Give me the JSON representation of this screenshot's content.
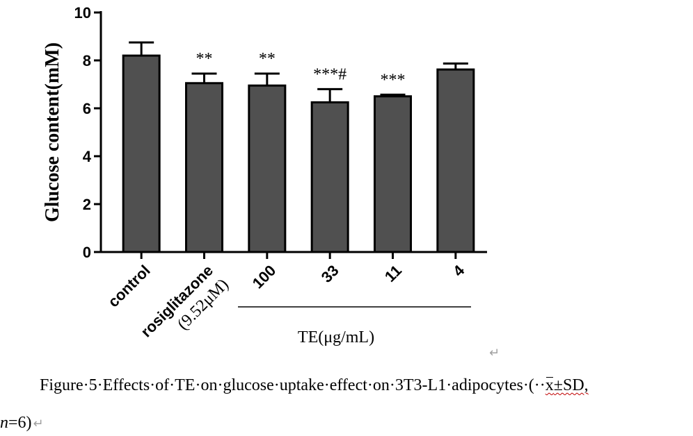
{
  "chart_data": {
    "type": "bar",
    "categories": [
      "control",
      "rosiglitazone",
      "100",
      "33",
      "11",
      "4"
    ],
    "category_sublabels": [
      "",
      "(9.52μM)",
      "",
      "",
      "",
      ""
    ],
    "values": [
      8.2,
      7.05,
      6.95,
      6.25,
      6.5,
      7.62
    ],
    "errors": [
      0.55,
      0.4,
      0.5,
      0.55,
      0.07,
      0.25
    ],
    "significance": [
      "",
      "**",
      "**",
      "***#",
      "***",
      ""
    ],
    "ylabel": "Glucose content(mM)",
    "xlabel": "",
    "group_label": "TE(μg/mL)",
    "ylim": [
      0,
      10
    ],
    "yticks": [
      0,
      2,
      4,
      6,
      8,
      10
    ],
    "bar_color": "#505050",
    "grid": false
  },
  "caption": {
    "text_before": "Figure·5·Effects·of·TE·on·glucose·uptake·effect·on·3T3-L1·adipocytes·(··",
    "xbar_char": "x",
    "text_after": "±SD,",
    "line2_n": "n",
    "line2_rest": "=6)",
    "return_symbol": "↵"
  }
}
